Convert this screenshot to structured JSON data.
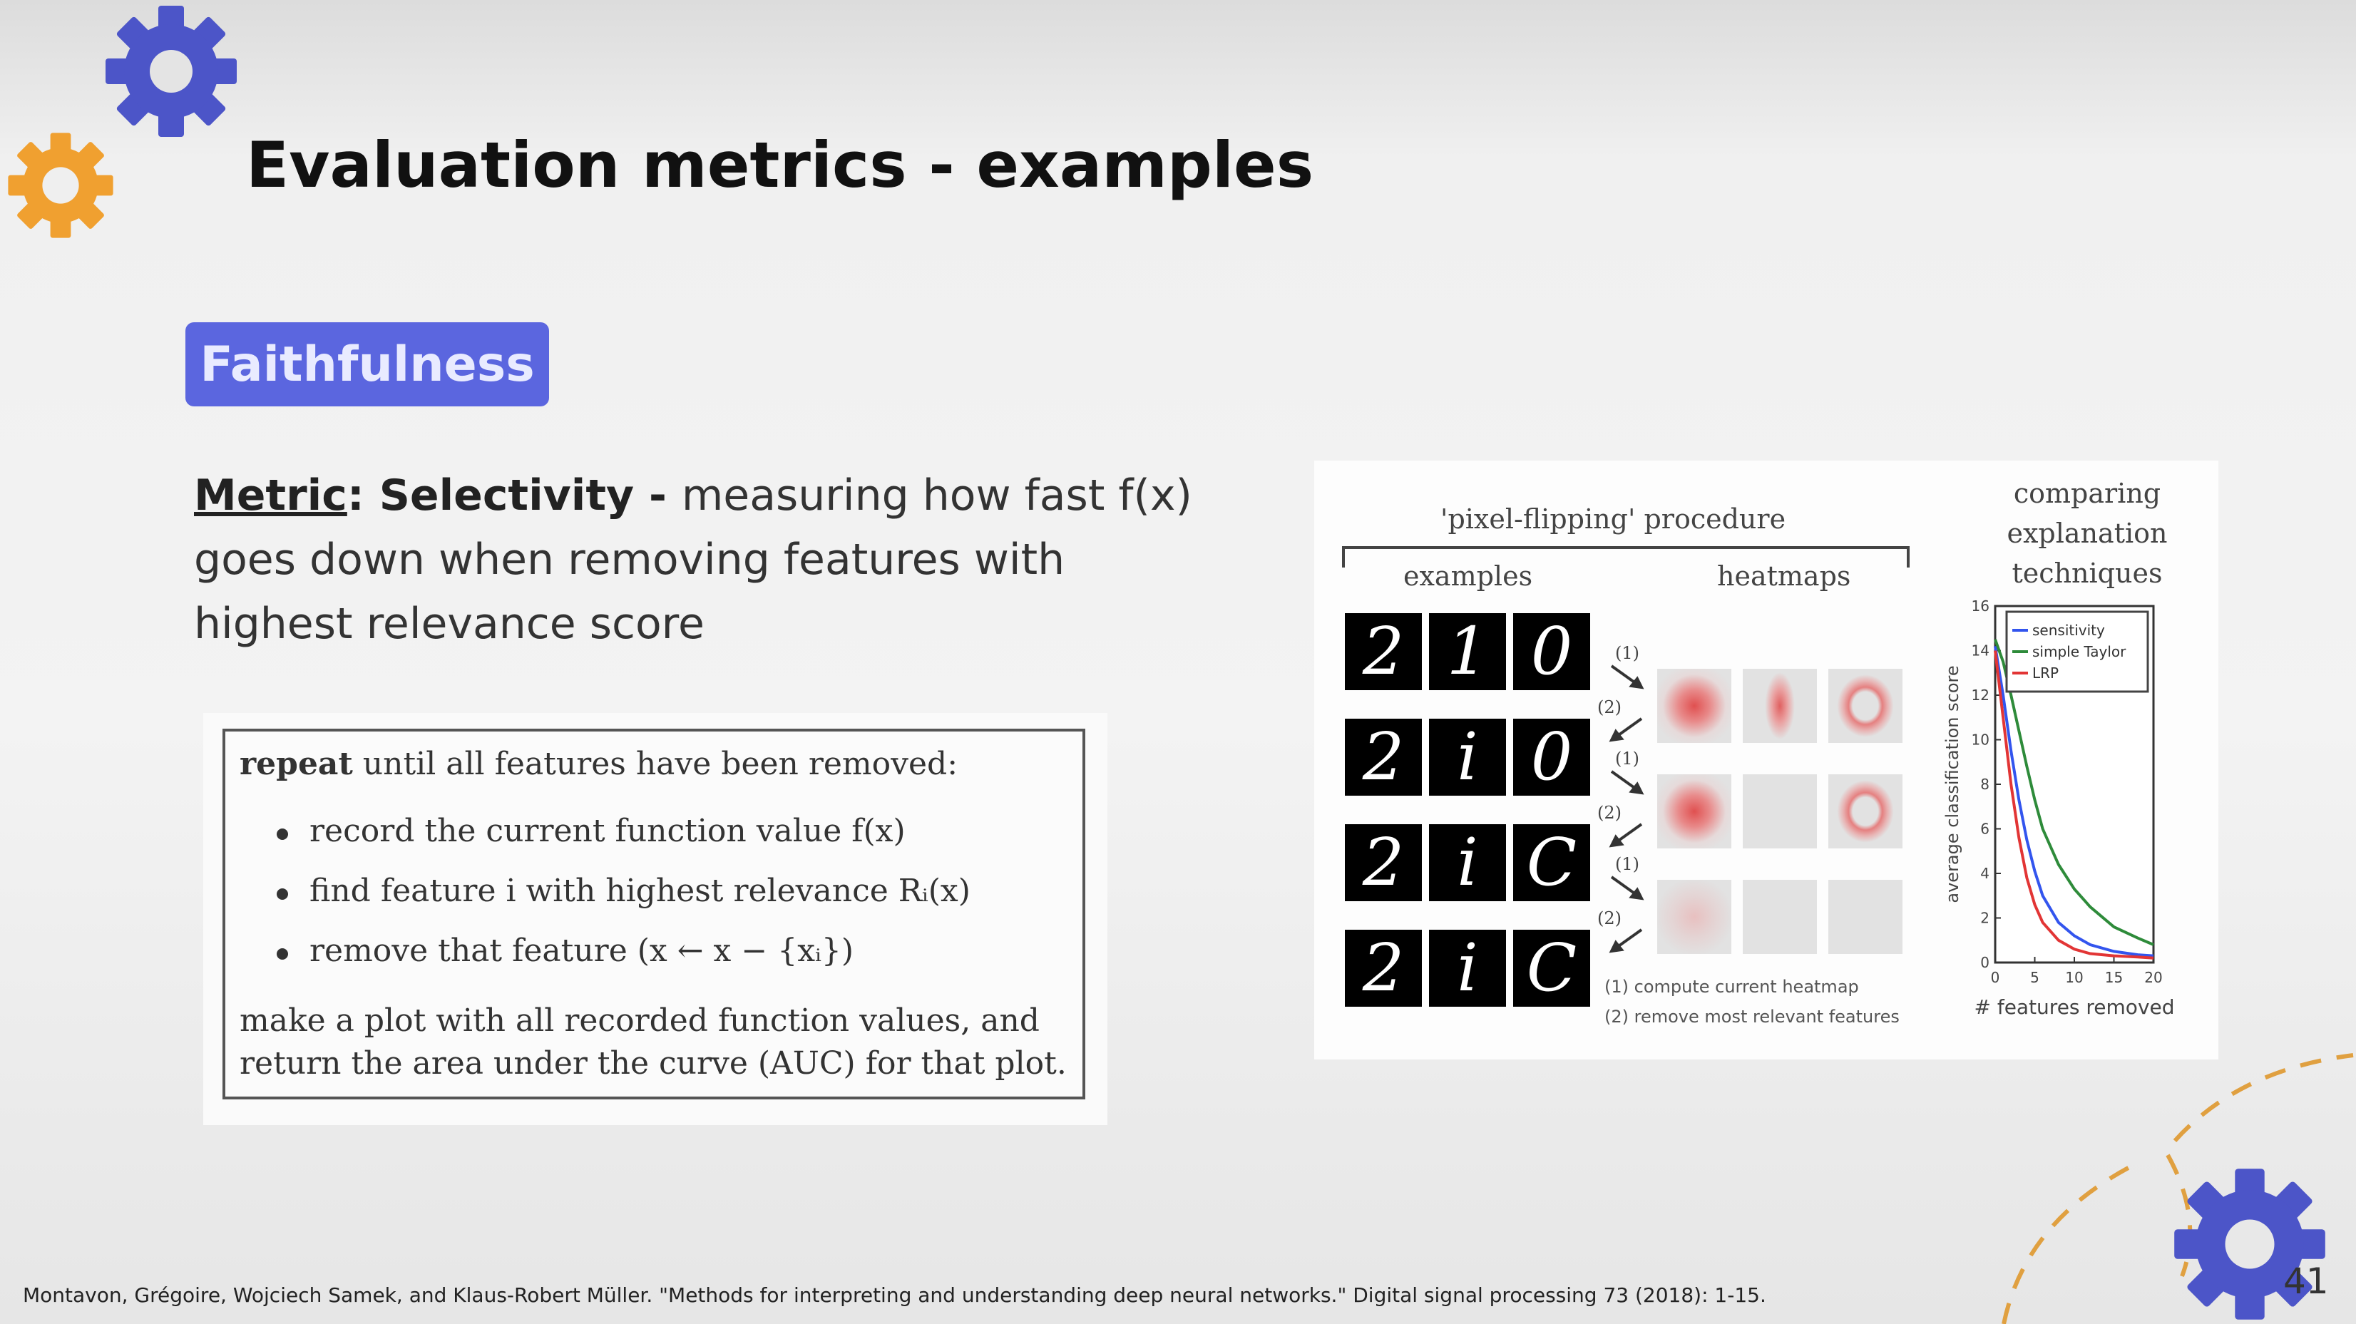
{
  "slide": {
    "title": "Evaluation metrics - examples",
    "badge": "Faithfulness",
    "metric": {
      "term": "Metric",
      "colon": ":",
      "name": " Selectivity - ",
      "description": "measuring how fast f(x) goes down when removing features with highest relevance score"
    },
    "algorithm": {
      "repeat_keyword": "repeat",
      "repeat_text": " until all features have been removed:",
      "bullets": [
        "record the current function value f(x)",
        "find feature i with highest relevance Rᵢ(x)",
        "remove that feature (x ← x − {xᵢ})"
      ],
      "footer_line1": "make a plot with all recorded function values, and",
      "footer_line2": "return the area under the curve (AUC) for that plot."
    },
    "figure": {
      "procedure_title": "'pixel-flipping' procedure",
      "col_examples": "examples",
      "col_heatmaps": "heatmaps",
      "comparing_title": [
        "comparing",
        "explanation",
        "techniques"
      ],
      "digits": [
        [
          "2",
          "1",
          "0"
        ],
        [
          "2",
          "i",
          "0"
        ],
        [
          "2",
          "i",
          "C"
        ],
        [
          "2",
          "i",
          "C"
        ]
      ],
      "step_labels": [
        "(1)",
        "(2)",
        "(1)",
        "(2)",
        "(1)",
        "(2)"
      ],
      "note1": "(1) compute current heatmap",
      "note2": "(2) remove most relevant features"
    },
    "citation": "Montavon, Grégoire, Wojciech Samek, and Klaus-Robert Müller. \"Methods for interpreting and understanding deep neural networks.\" Digital signal processing 73 (2018): 1-15.",
    "page_number": "41"
  },
  "colors": {
    "accent_blue": "#4c55c8",
    "accent_orange": "#f0a030",
    "badge_bg": "#5b66df",
    "sensitivity": "#3355ee",
    "simple_taylor": "#2e8b3a",
    "lrp": "#e23535"
  },
  "icons": [
    "gear-icon-blue",
    "gear-icon-orange",
    "gear-icon-corner"
  ],
  "chart_data": {
    "type": "line",
    "title": "",
    "xlabel": "# features removed",
    "ylabel": "average classification score",
    "xlim": [
      0,
      20
    ],
    "ylim": [
      0,
      16
    ],
    "xticks": [
      "0",
      "5",
      "10",
      "15",
      "20"
    ],
    "yticks": [
      "0",
      "2",
      "4",
      "6",
      "8",
      "10",
      "12",
      "14",
      "16"
    ],
    "legend_position": "top-right",
    "grid": false,
    "x": [
      0,
      1,
      2,
      3,
      4,
      5,
      6,
      8,
      10,
      12,
      15,
      18,
      20
    ],
    "series": [
      {
        "name": "sensitivity",
        "color": "#3355ee",
        "values": [
          14.2,
          12.0,
          9.5,
          7.3,
          5.5,
          4.1,
          3.0,
          1.8,
          1.2,
          0.8,
          0.5,
          0.35,
          0.3
        ]
      },
      {
        "name": "simple Taylor",
        "color": "#2e8b3a",
        "values": [
          14.5,
          13.5,
          12.0,
          10.4,
          8.8,
          7.3,
          6.0,
          4.4,
          3.3,
          2.5,
          1.6,
          1.1,
          0.8
        ]
      },
      {
        "name": "LRP",
        "color": "#e23535",
        "values": [
          14.0,
          11.0,
          8.0,
          5.6,
          3.8,
          2.6,
          1.8,
          1.0,
          0.6,
          0.4,
          0.3,
          0.25,
          0.2
        ]
      }
    ]
  }
}
